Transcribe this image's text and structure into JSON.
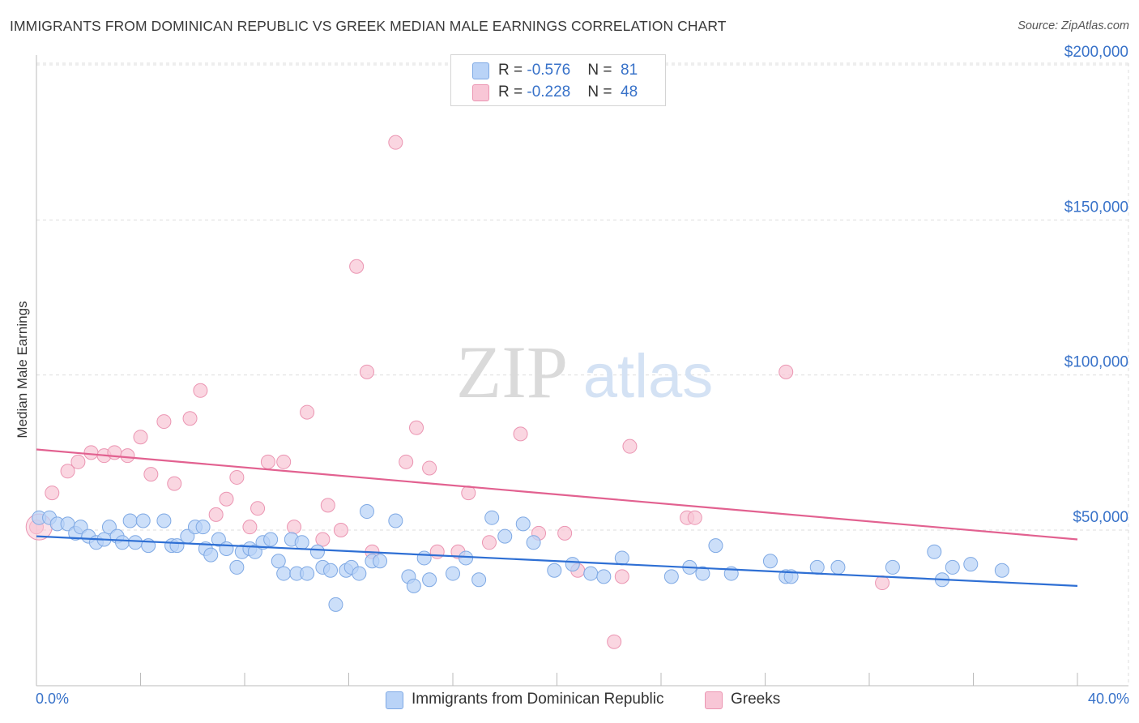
{
  "title": "IMMIGRANTS FROM DOMINICAN REPUBLIC VS GREEK MEDIAN MALE EARNINGS CORRELATION CHART",
  "source": "Source: ZipAtlas.com",
  "watermark": {
    "zip": "ZIP",
    "atlas": "atlas"
  },
  "colors": {
    "blue_fill": "#b9d3f7",
    "blue_stroke": "#7fa9e4",
    "blue_line": "#2e6fd4",
    "pink_fill": "#f8c6d6",
    "pink_stroke": "#eb95b2",
    "pink_line": "#e26190",
    "axis_text": "#3872c9",
    "grid": "#dddddd"
  },
  "legend": {
    "rows": [
      {
        "r_label": "R = ",
        "r_value": "-0.576",
        "n_label": "N = ",
        "n_value": "81"
      },
      {
        "r_label": "R = ",
        "r_value": "-0.228",
        "n_label": "N = ",
        "n_value": "48"
      }
    ]
  },
  "x_min_label": "0.0%",
  "x_max_label": "40.0%",
  "chart_data": {
    "type": "scatter",
    "title": "IMMIGRANTS FROM DOMINICAN REPUBLIC VS GREEK MEDIAN MALE EARNINGS CORRELATION CHART",
    "xlabel": "",
    "ylabel": "Median Male Earnings",
    "xlim": [
      0,
      40
    ],
    "ylim": [
      5000,
      210000
    ],
    "y_ticks": [
      50000,
      100000,
      150000,
      200000
    ],
    "y_tick_labels": [
      "$50,000",
      "$100,000",
      "$150,000",
      "$200,000"
    ],
    "x_ticks": [
      0,
      4,
      8,
      12,
      16,
      20,
      24,
      28,
      32,
      36,
      40
    ],
    "grid": true,
    "legend_position": "top-center",
    "series": [
      {
        "name": "Immigrants from Dominican Republic",
        "color": "#7fa9e4",
        "trend": {
          "x": [
            0,
            40
          ],
          "y": [
            48000,
            32000
          ]
        },
        "points": [
          [
            0.1,
            54000
          ],
          [
            0.5,
            54000
          ],
          [
            0.8,
            52000
          ],
          [
            1.2,
            52000
          ],
          [
            1.5,
            49000
          ],
          [
            1.7,
            51000
          ],
          [
            2.0,
            48000
          ],
          [
            2.3,
            46000
          ],
          [
            2.6,
            47000
          ],
          [
            2.8,
            51000
          ],
          [
            3.1,
            48000
          ],
          [
            3.3,
            46000
          ],
          [
            3.6,
            53000
          ],
          [
            3.8,
            46000
          ],
          [
            4.1,
            53000
          ],
          [
            4.3,
            45000
          ],
          [
            4.9,
            53000
          ],
          [
            5.2,
            45000
          ],
          [
            5.4,
            45000
          ],
          [
            5.8,
            48000
          ],
          [
            6.1,
            51000
          ],
          [
            6.4,
            51000
          ],
          [
            6.5,
            44000
          ],
          [
            6.7,
            42000
          ],
          [
            7.0,
            47000
          ],
          [
            7.3,
            44000
          ],
          [
            7.7,
            38000
          ],
          [
            7.9,
            43000
          ],
          [
            8.2,
            44000
          ],
          [
            8.4,
            43000
          ],
          [
            8.7,
            46000
          ],
          [
            9.0,
            47000
          ],
          [
            9.3,
            40000
          ],
          [
            9.5,
            36000
          ],
          [
            9.8,
            47000
          ],
          [
            10.0,
            36000
          ],
          [
            10.2,
            46000
          ],
          [
            10.4,
            36000
          ],
          [
            10.8,
            43000
          ],
          [
            11.0,
            38000
          ],
          [
            11.3,
            37000
          ],
          [
            11.5,
            26000
          ],
          [
            11.9,
            37000
          ],
          [
            12.1,
            38000
          ],
          [
            12.4,
            36000
          ],
          [
            12.7,
            56000
          ],
          [
            12.9,
            40000
          ],
          [
            13.2,
            40000
          ],
          [
            13.8,
            53000
          ],
          [
            14.3,
            35000
          ],
          [
            14.5,
            32000
          ],
          [
            14.9,
            41000
          ],
          [
            15.1,
            34000
          ],
          [
            16.0,
            36000
          ],
          [
            16.5,
            41000
          ],
          [
            17.0,
            34000
          ],
          [
            17.5,
            54000
          ],
          [
            18.0,
            48000
          ],
          [
            18.7,
            52000
          ],
          [
            19.1,
            46000
          ],
          [
            19.9,
            37000
          ],
          [
            20.6,
            39000
          ],
          [
            21.3,
            36000
          ],
          [
            21.8,
            35000
          ],
          [
            22.5,
            41000
          ],
          [
            24.4,
            35000
          ],
          [
            25.1,
            38000
          ],
          [
            25.6,
            36000
          ],
          [
            26.1,
            45000
          ],
          [
            26.7,
            36000
          ],
          [
            28.2,
            40000
          ],
          [
            28.8,
            35000
          ],
          [
            29.0,
            35000
          ],
          [
            30.0,
            38000
          ],
          [
            30.8,
            38000
          ],
          [
            32.9,
            38000
          ],
          [
            34.5,
            43000
          ],
          [
            34.8,
            34000
          ],
          [
            35.2,
            38000
          ],
          [
            35.9,
            39000
          ],
          [
            37.1,
            37000
          ]
        ]
      },
      {
        "name": "Greeks",
        "color": "#eb95b2",
        "trend": {
          "x": [
            0,
            40
          ],
          "y": [
            76000,
            47000
          ]
        },
        "points": [
          [
            0.0,
            51000
          ],
          [
            0.6,
            62000
          ],
          [
            1.2,
            69000
          ],
          [
            1.6,
            72000
          ],
          [
            2.1,
            75000
          ],
          [
            2.6,
            74000
          ],
          [
            3.0,
            75000
          ],
          [
            3.5,
            74000
          ],
          [
            4.0,
            80000
          ],
          [
            4.4,
            68000
          ],
          [
            4.9,
            85000
          ],
          [
            5.3,
            65000
          ],
          [
            5.9,
            86000
          ],
          [
            6.3,
            95000
          ],
          [
            6.9,
            55000
          ],
          [
            7.3,
            60000
          ],
          [
            7.7,
            67000
          ],
          [
            8.2,
            51000
          ],
          [
            8.5,
            57000
          ],
          [
            8.9,
            72000
          ],
          [
            9.5,
            72000
          ],
          [
            9.9,
            51000
          ],
          [
            10.4,
            88000
          ],
          [
            11.0,
            47000
          ],
          [
            11.2,
            58000
          ],
          [
            11.7,
            50000
          ],
          [
            12.3,
            135000
          ],
          [
            12.7,
            101000
          ],
          [
            12.9,
            43000
          ],
          [
            13.8,
            175000
          ],
          [
            14.2,
            72000
          ],
          [
            14.6,
            83000
          ],
          [
            15.1,
            70000
          ],
          [
            15.4,
            43000
          ],
          [
            16.2,
            43000
          ],
          [
            16.6,
            62000
          ],
          [
            17.4,
            46000
          ],
          [
            18.6,
            81000
          ],
          [
            19.3,
            49000
          ],
          [
            20.3,
            49000
          ],
          [
            20.8,
            37000
          ],
          [
            22.2,
            14000
          ],
          [
            22.5,
            35000
          ],
          [
            22.8,
            77000
          ],
          [
            25.0,
            54000
          ],
          [
            25.3,
            54000
          ],
          [
            28.8,
            101000
          ],
          [
            32.5,
            33000
          ]
        ]
      }
    ]
  },
  "bottom_legend": {
    "items": [
      {
        "label": "Immigrants from Dominican Republic"
      },
      {
        "label": "Greeks"
      }
    ]
  }
}
